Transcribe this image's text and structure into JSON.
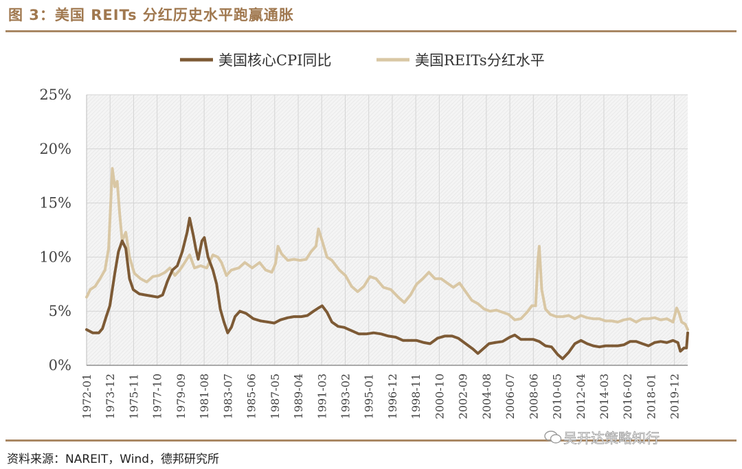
{
  "title": "图 3：美国 REITs 分红历史水平跑赢通胀",
  "source": "资料来源：NAREIT，Wind，德邦研究所",
  "watermark": "吴开达策略知行",
  "colors": {
    "cpi": "#7d5a35",
    "reits": "#d9c7a4",
    "accent": "#a98763",
    "grid": "#d4d4d4"
  },
  "chart_data": {
    "type": "line",
    "title": "",
    "xlabel": "",
    "ylabel": "",
    "ylim": [
      0,
      25
    ],
    "yticks": [
      "0%",
      "5%",
      "10%",
      "15%",
      "20%",
      "25%"
    ],
    "grid": true,
    "legend_position": "top-center",
    "x_start": "1972-01",
    "x_end": "2020-12",
    "xtick_labels": [
      "1972-01",
      "1973-12",
      "1975-11",
      "1977-10",
      "1979-09",
      "1981-08",
      "1983-07",
      "1985-06",
      "1987-05",
      "1989-04",
      "1991-03",
      "1993-02",
      "1995-01",
      "1996-12",
      "1998-11",
      "2000-10",
      "2002-09",
      "2004-08",
      "2006-07",
      "2008-06",
      "2010-05",
      "2012-04",
      "2014-03",
      "2016-02",
      "2018-01",
      "2019-12"
    ],
    "series": [
      {
        "name": "美国核心CPI同比",
        "points": [
          [
            1972.0,
            3.3
          ],
          [
            1972.5,
            3.0
          ],
          [
            1973.0,
            3.0
          ],
          [
            1973.3,
            3.4
          ],
          [
            1973.6,
            4.5
          ],
          [
            1973.9,
            5.5
          ],
          [
            1974.3,
            8.5
          ],
          [
            1974.6,
            10.5
          ],
          [
            1974.9,
            11.5
          ],
          [
            1975.2,
            10.8
          ],
          [
            1975.5,
            8.0
          ],
          [
            1975.8,
            7.0
          ],
          [
            1976.3,
            6.6
          ],
          [
            1976.8,
            6.5
          ],
          [
            1977.3,
            6.4
          ],
          [
            1977.8,
            6.3
          ],
          [
            1978.2,
            6.5
          ],
          [
            1978.6,
            7.8
          ],
          [
            1979.0,
            8.8
          ],
          [
            1979.4,
            9.2
          ],
          [
            1979.8,
            10.5
          ],
          [
            1980.2,
            12.3
          ],
          [
            1980.4,
            13.6
          ],
          [
            1980.7,
            12.0
          ],
          [
            1980.9,
            10.8
          ],
          [
            1981.1,
            9.8
          ],
          [
            1981.4,
            11.5
          ],
          [
            1981.6,
            11.8
          ],
          [
            1981.9,
            10.0
          ],
          [
            1982.3,
            8.8
          ],
          [
            1982.6,
            7.5
          ],
          [
            1982.9,
            5.2
          ],
          [
            1983.2,
            4.0
          ],
          [
            1983.5,
            3.0
          ],
          [
            1983.8,
            3.5
          ],
          [
            1984.1,
            4.5
          ],
          [
            1984.5,
            5.0
          ],
          [
            1985.0,
            4.8
          ],
          [
            1985.6,
            4.3
          ],
          [
            1986.2,
            4.1
          ],
          [
            1986.8,
            4.0
          ],
          [
            1987.3,
            3.9
          ],
          [
            1987.8,
            4.2
          ],
          [
            1988.4,
            4.4
          ],
          [
            1988.9,
            4.5
          ],
          [
            1989.5,
            4.5
          ],
          [
            1990.0,
            4.6
          ],
          [
            1990.5,
            5.0
          ],
          [
            1990.9,
            5.3
          ],
          [
            1991.2,
            5.5
          ],
          [
            1991.6,
            4.9
          ],
          [
            1992.0,
            4.0
          ],
          [
            1992.5,
            3.6
          ],
          [
            1993.0,
            3.5
          ],
          [
            1993.6,
            3.2
          ],
          [
            1994.2,
            2.9
          ],
          [
            1994.8,
            2.9
          ],
          [
            1995.4,
            3.0
          ],
          [
            1996.0,
            2.9
          ],
          [
            1996.6,
            2.7
          ],
          [
            1997.2,
            2.6
          ],
          [
            1997.8,
            2.3
          ],
          [
            1998.3,
            2.3
          ],
          [
            1998.9,
            2.3
          ],
          [
            1999.5,
            2.1
          ],
          [
            2000.0,
            2.0
          ],
          [
            2000.6,
            2.5
          ],
          [
            2001.2,
            2.7
          ],
          [
            2001.8,
            2.7
          ],
          [
            2002.3,
            2.5
          ],
          [
            2002.9,
            2.0
          ],
          [
            2003.5,
            1.5
          ],
          [
            2003.9,
            1.1
          ],
          [
            2004.3,
            1.5
          ],
          [
            2004.8,
            2.0
          ],
          [
            2005.3,
            2.1
          ],
          [
            2005.9,
            2.2
          ],
          [
            2006.5,
            2.6
          ],
          [
            2006.9,
            2.8
          ],
          [
            2007.4,
            2.4
          ],
          [
            2007.9,
            2.4
          ],
          [
            2008.4,
            2.4
          ],
          [
            2008.9,
            2.2
          ],
          [
            2009.4,
            1.8
          ],
          [
            2009.9,
            1.7
          ],
          [
            2010.4,
            1.0
          ],
          [
            2010.8,
            0.6
          ],
          [
            2011.3,
            1.2
          ],
          [
            2011.8,
            2.0
          ],
          [
            2012.3,
            2.3
          ],
          [
            2012.8,
            2.0
          ],
          [
            2013.3,
            1.8
          ],
          [
            2013.8,
            1.7
          ],
          [
            2014.3,
            1.8
          ],
          [
            2014.8,
            1.8
          ],
          [
            2015.3,
            1.8
          ],
          [
            2015.8,
            1.9
          ],
          [
            2016.3,
            2.2
          ],
          [
            2016.8,
            2.2
          ],
          [
            2017.3,
            2.0
          ],
          [
            2017.8,
            1.8
          ],
          [
            2018.3,
            2.1
          ],
          [
            2018.8,
            2.2
          ],
          [
            2019.3,
            2.1
          ],
          [
            2019.8,
            2.3
          ],
          [
            2020.2,
            2.1
          ],
          [
            2020.4,
            1.3
          ],
          [
            2020.7,
            1.6
          ],
          [
            2020.9,
            1.6
          ],
          [
            2021.0,
            3.0
          ]
        ]
      },
      {
        "name": "美国REITs分红水平",
        "points": [
          [
            1972.0,
            6.3
          ],
          [
            1972.3,
            7.0
          ],
          [
            1972.7,
            7.3
          ],
          [
            1973.1,
            8.0
          ],
          [
            1973.5,
            8.8
          ],
          [
            1973.8,
            10.8
          ],
          [
            1974.1,
            18.2
          ],
          [
            1974.3,
            16.5
          ],
          [
            1974.5,
            17.0
          ],
          [
            1974.7,
            14.0
          ],
          [
            1974.9,
            11.5
          ],
          [
            1975.2,
            12.3
          ],
          [
            1975.5,
            10.0
          ],
          [
            1975.9,
            8.5
          ],
          [
            1976.4,
            8.0
          ],
          [
            1976.9,
            7.7
          ],
          [
            1977.4,
            8.2
          ],
          [
            1977.9,
            8.3
          ],
          [
            1978.4,
            8.6
          ],
          [
            1978.8,
            9.0
          ],
          [
            1979.2,
            8.3
          ],
          [
            1979.6,
            8.8
          ],
          [
            1980.0,
            9.5
          ],
          [
            1980.4,
            10.2
          ],
          [
            1980.8,
            9.0
          ],
          [
            1981.3,
            9.2
          ],
          [
            1981.8,
            9.0
          ],
          [
            1982.3,
            10.2
          ],
          [
            1982.7,
            10.0
          ],
          [
            1983.0,
            9.5
          ],
          [
            1983.4,
            8.3
          ],
          [
            1983.8,
            8.8
          ],
          [
            1984.4,
            9.0
          ],
          [
            1984.9,
            9.5
          ],
          [
            1985.5,
            9.0
          ],
          [
            1986.1,
            9.5
          ],
          [
            1986.6,
            8.8
          ],
          [
            1987.1,
            8.6
          ],
          [
            1987.4,
            9.4
          ],
          [
            1987.6,
            11.0
          ],
          [
            1987.9,
            10.3
          ],
          [
            1988.4,
            9.7
          ],
          [
            1988.9,
            9.8
          ],
          [
            1989.4,
            9.7
          ],
          [
            1989.9,
            9.8
          ],
          [
            1990.3,
            10.5
          ],
          [
            1990.7,
            11.0
          ],
          [
            1990.9,
            12.6
          ],
          [
            1991.2,
            11.5
          ],
          [
            1991.6,
            10.0
          ],
          [
            1992.0,
            9.7
          ],
          [
            1992.6,
            8.8
          ],
          [
            1993.1,
            8.3
          ],
          [
            1993.6,
            7.3
          ],
          [
            1994.1,
            6.8
          ],
          [
            1994.6,
            7.3
          ],
          [
            1995.1,
            8.2
          ],
          [
            1995.6,
            8.0
          ],
          [
            1996.2,
            7.2
          ],
          [
            1996.8,
            7.0
          ],
          [
            1997.4,
            6.3
          ],
          [
            1997.9,
            5.8
          ],
          [
            1998.4,
            6.5
          ],
          [
            1998.9,
            7.5
          ],
          [
            1999.4,
            8.0
          ],
          [
            1999.9,
            8.6
          ],
          [
            2000.4,
            8.0
          ],
          [
            2000.9,
            8.0
          ],
          [
            2001.4,
            7.6
          ],
          [
            2001.9,
            7.2
          ],
          [
            2002.4,
            7.6
          ],
          [
            2002.9,
            6.8
          ],
          [
            2003.4,
            6.0
          ],
          [
            2003.9,
            5.7
          ],
          [
            2004.4,
            5.2
          ],
          [
            2004.9,
            5.0
          ],
          [
            2005.4,
            5.1
          ],
          [
            2005.9,
            4.9
          ],
          [
            2006.4,
            4.7
          ],
          [
            2006.9,
            4.2
          ],
          [
            2007.4,
            4.3
          ],
          [
            2007.9,
            4.9
          ],
          [
            2008.3,
            5.5
          ],
          [
            2008.6,
            5.5
          ],
          [
            2008.8,
            9.8
          ],
          [
            2008.9,
            11.0
          ],
          [
            2009.1,
            7.0
          ],
          [
            2009.4,
            5.2
          ],
          [
            2009.8,
            4.7
          ],
          [
            2010.3,
            4.5
          ],
          [
            2010.8,
            4.5
          ],
          [
            2011.3,
            4.6
          ],
          [
            2011.8,
            4.3
          ],
          [
            2012.3,
            4.6
          ],
          [
            2012.8,
            4.4
          ],
          [
            2013.3,
            4.3
          ],
          [
            2013.8,
            4.3
          ],
          [
            2014.3,
            4.1
          ],
          [
            2014.8,
            4.1
          ],
          [
            2015.3,
            4.0
          ],
          [
            2015.8,
            4.2
          ],
          [
            2016.3,
            4.3
          ],
          [
            2016.8,
            4.0
          ],
          [
            2017.3,
            4.3
          ],
          [
            2017.8,
            4.3
          ],
          [
            2018.3,
            4.4
          ],
          [
            2018.8,
            4.2
          ],
          [
            2019.3,
            4.3
          ],
          [
            2019.8,
            4.0
          ],
          [
            2020.1,
            5.3
          ],
          [
            2020.3,
            4.8
          ],
          [
            2020.5,
            4.0
          ],
          [
            2020.8,
            3.8
          ],
          [
            2021.0,
            3.3
          ]
        ]
      }
    ]
  }
}
